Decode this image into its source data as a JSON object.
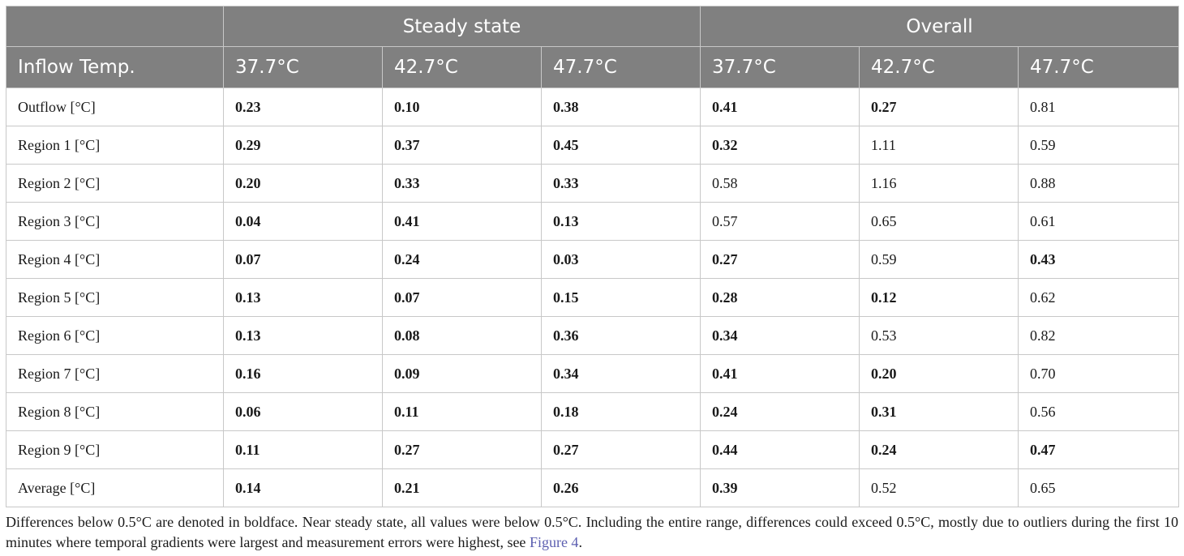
{
  "table": {
    "group_headers": [
      "",
      "Steady state",
      "Overall"
    ],
    "columns": [
      "Inflow Temp.",
      "37.7°C",
      "42.7°C",
      "47.7°C",
      "37.7°C",
      "42.7°C",
      "47.7°C"
    ],
    "rows": [
      {
        "label": "Outflow [°C]",
        "values": [
          "0.23",
          "0.10",
          "0.38",
          "0.41",
          "0.27",
          "0.81"
        ],
        "bold": [
          true,
          true,
          true,
          true,
          true,
          false
        ]
      },
      {
        "label": "Region 1 [°C]",
        "values": [
          "0.29",
          "0.37",
          "0.45",
          "0.32",
          "1.11",
          "0.59"
        ],
        "bold": [
          true,
          true,
          true,
          true,
          false,
          false
        ]
      },
      {
        "label": "Region 2 [°C]",
        "values": [
          "0.20",
          "0.33",
          "0.33",
          "0.58",
          "1.16",
          "0.88"
        ],
        "bold": [
          true,
          true,
          true,
          false,
          false,
          false
        ]
      },
      {
        "label": "Region 3 [°C]",
        "values": [
          "0.04",
          "0.41",
          "0.13",
          "0.57",
          "0.65",
          "0.61"
        ],
        "bold": [
          true,
          true,
          true,
          false,
          false,
          false
        ]
      },
      {
        "label": "Region 4 [°C]",
        "values": [
          "0.07",
          "0.24",
          "0.03",
          "0.27",
          "0.59",
          "0.43"
        ],
        "bold": [
          true,
          true,
          true,
          true,
          false,
          true
        ]
      },
      {
        "label": "Region 5 [°C]",
        "values": [
          "0.13",
          "0.07",
          "0.15",
          "0.28",
          "0.12",
          "0.62"
        ],
        "bold": [
          true,
          true,
          true,
          true,
          true,
          false
        ]
      },
      {
        "label": "Region 6 [°C]",
        "values": [
          "0.13",
          "0.08",
          "0.36",
          "0.34",
          "0.53",
          "0.82"
        ],
        "bold": [
          true,
          true,
          true,
          true,
          false,
          false
        ]
      },
      {
        "label": "Region 7 [°C]",
        "values": [
          "0.16",
          "0.09",
          "0.34",
          "0.41",
          "0.20",
          "0.70"
        ],
        "bold": [
          true,
          true,
          true,
          true,
          true,
          false
        ]
      },
      {
        "label": "Region 8 [°C]",
        "values": [
          "0.06",
          "0.11",
          "0.18",
          "0.24",
          "0.31",
          "0.56"
        ],
        "bold": [
          true,
          true,
          true,
          true,
          true,
          false
        ]
      },
      {
        "label": "Region 9 [°C]",
        "values": [
          "0.11",
          "0.27",
          "0.27",
          "0.44",
          "0.24",
          "0.47"
        ],
        "bold": [
          true,
          true,
          true,
          true,
          true,
          true
        ]
      },
      {
        "label": "Average [°C]",
        "values": [
          "0.14",
          "0.21",
          "0.26",
          "0.39",
          "0.52",
          "0.65"
        ],
        "bold": [
          true,
          true,
          true,
          true,
          false,
          false
        ]
      }
    ]
  },
  "caption": {
    "text_before": "Differences below 0.5°C are denoted in boldface. Near steady state, all values were below 0.5°C. Including the entire range, differences could exceed 0.5°C, mostly due to outliers during the first 10 minutes where temporal gradients were largest and measurement errors were highest, see ",
    "link": "Figure 4",
    "text_after": "."
  },
  "colors": {
    "header_bg": "#808080",
    "header_text": "#ffffff",
    "link": "#5c5fb0"
  }
}
